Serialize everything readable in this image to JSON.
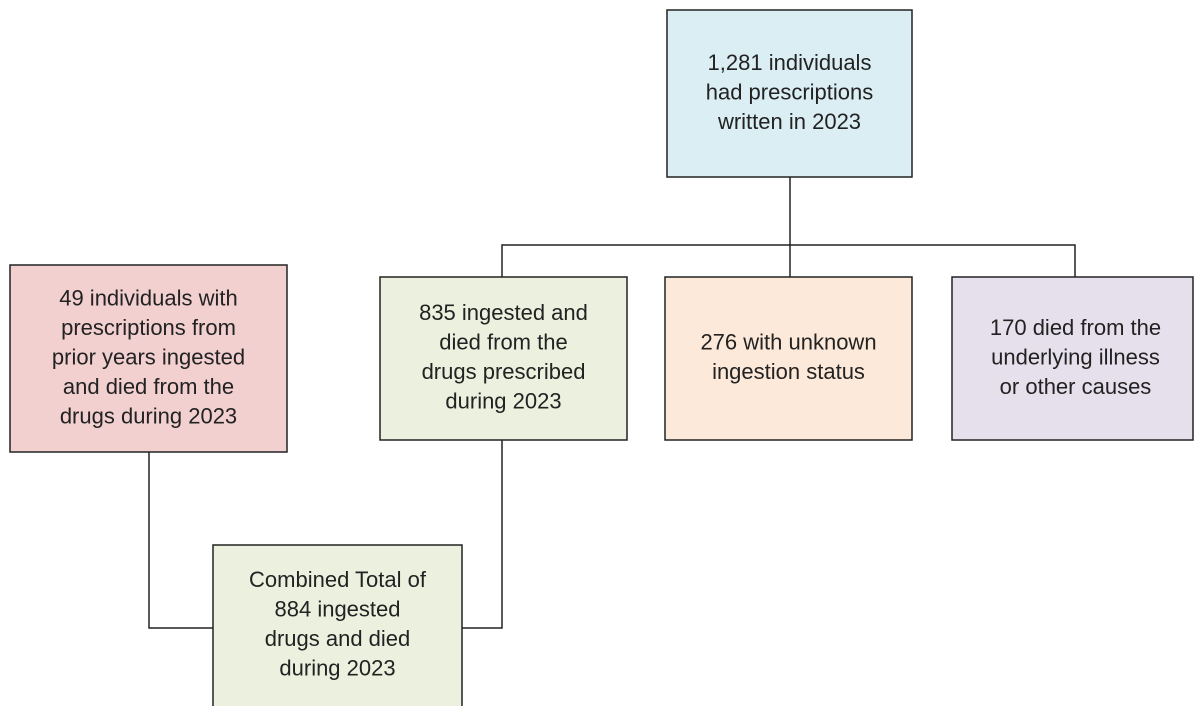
{
  "nodes": [
    {
      "lines": [
        "1,281 individuals",
        "had prescriptions",
        "written in 2023"
      ]
    },
    {
      "lines": [
        "49 individuals with",
        "prescriptions from",
        "prior years ingested",
        "and died from the",
        "drugs during 2023"
      ]
    },
    {
      "lines": [
        "835 ingested and",
        "died from the",
        "drugs prescribed",
        "during 2023"
      ]
    },
    {
      "lines": [
        "276 with unknown",
        "ingestion status"
      ]
    },
    {
      "lines": [
        "170 died from the",
        "underlying illness",
        "or other causes"
      ]
    },
    {
      "lines": [
        "Combined Total of",
        "884 ingested",
        "drugs and died",
        "during 2023"
      ]
    }
  ]
}
